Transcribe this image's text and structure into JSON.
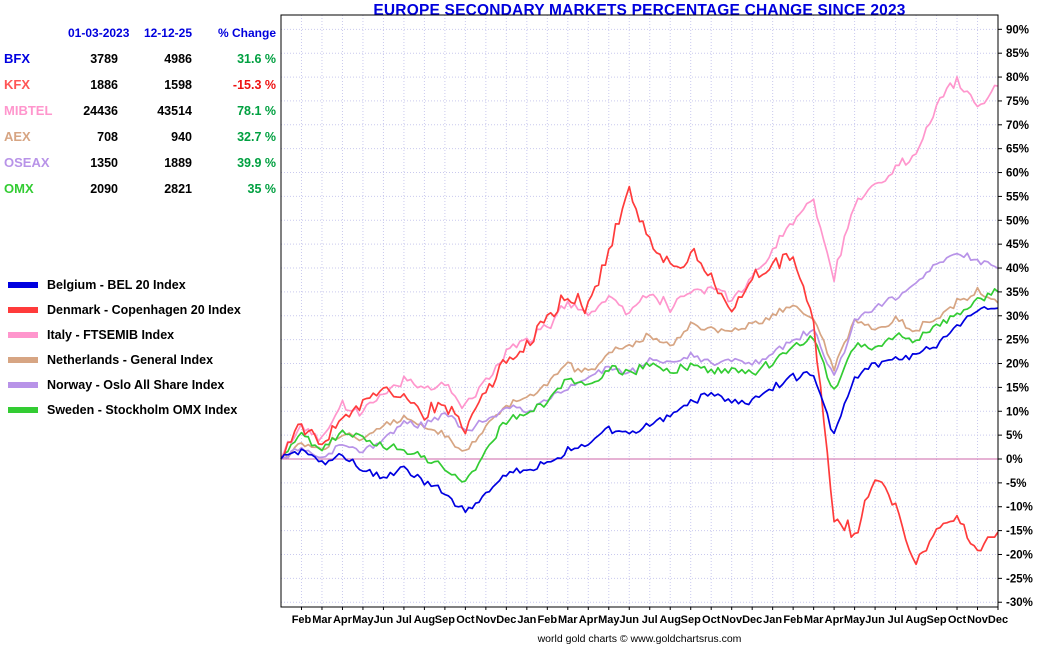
{
  "title": "EUROPE SECONDARY MARKETS PERCENTAGE CHANGE SINCE 2023",
  "footer": "world gold charts © www.goldchartsrus.com",
  "colors": {
    "title": "#0000dd",
    "table_header": "#0000dd",
    "positive_change": "#00a040",
    "negative_change": "#ee1111",
    "grid": "#c9c9ee",
    "zero_line": "#cc66aa",
    "plot_border": "#000000"
  },
  "stats_table": {
    "headers": [
      "01-03-2023",
      "12-12-25",
      "% Change"
    ],
    "rows": [
      {
        "label": "BFX",
        "color": "#0000e0",
        "start": "3789",
        "end": "4986",
        "change": "31.6 %",
        "change_color": "#00a040"
      },
      {
        "label": "KFX",
        "color": "#ff5555",
        "start": "1886",
        "end": "1598",
        "change": "-15.3 %",
        "change_color": "#ee1111"
      },
      {
        "label": "MIBTEL",
        "color": "#ff96cd",
        "start": "24436",
        "end": "43514",
        "change": "78.1 %",
        "change_color": "#00a040"
      },
      {
        "label": "AEX",
        "color": "#d7a583",
        "start": "708",
        "end": "940",
        "change": "32.7 %",
        "change_color": "#00a040"
      },
      {
        "label": "OSEAX",
        "color": "#b893e8",
        "start": "1350",
        "end": "1889",
        "change": "39.9 %",
        "change_color": "#00a040"
      },
      {
        "label": "OMX",
        "color": "#33cc33",
        "start": "2090",
        "end": "2821",
        "change": "35 %",
        "change_color": "#00a040"
      }
    ]
  },
  "legend": [
    {
      "label": "Belgium - BEL 20 Index",
      "color": "#0000e0"
    },
    {
      "label": "Denmark - Copenhagen 20 Index",
      "color": "#ff3b3b"
    },
    {
      "label": "Italy - FTSEMIB Index",
      "color": "#ff96cd"
    },
    {
      "label": "Netherlands - General Index",
      "color": "#d7a583"
    },
    {
      "label": "Norway -  Oslo All Share Index",
      "color": "#b893e8"
    },
    {
      "label": "Sweden -  Stockholm OMX Index",
      "color": "#33cc33"
    }
  ],
  "chart_data": {
    "type": "line",
    "title": "EUROPE SECONDARY MARKETS PERCENTAGE CHANGE SINCE 2023",
    "x_range": "Jan 2023 - Dec 2025",
    "x_tick_labels": [
      "Feb",
      "Mar",
      "Apr",
      "May",
      "Jun",
      "Jul",
      "Aug",
      "Sep",
      "Oct",
      "Nov",
      "Dec",
      "Jan",
      "Feb",
      "Mar",
      "Apr",
      "May",
      "Jun",
      "Jul",
      "Aug",
      "Sep",
      "Oct",
      "Nov",
      "Dec",
      "Jan",
      "Feb",
      "Mar",
      "Apr",
      "May",
      "Jun",
      "Jul",
      "Aug",
      "Sep",
      "Oct",
      "Nov",
      "Dec"
    ],
    "ylim": [
      -30,
      90
    ],
    "y_tick_step": 5,
    "y_unit": "%",
    "grid": true,
    "legend_position": "left",
    "series": [
      {
        "id": "belgium-bel20",
        "name": "Belgium - BEL 20 Index",
        "color": "#0000e0",
        "volatility": 1.0,
        "monthly_values": [
          0,
          2,
          -1,
          1,
          -2,
          -4,
          -2,
          -5,
          -7,
          -11,
          -7,
          -3,
          -2,
          -1,
          2,
          3,
          6,
          5,
          7,
          9,
          12,
          14,
          12,
          12,
          15,
          17,
          18,
          5,
          17,
          20,
          21,
          22,
          24,
          28,
          31,
          31.6
        ]
      },
      {
        "id": "denmark-copenhagen20",
        "name": "Denmark - Copenhagen 20 Index",
        "color": "#ff3b3b",
        "volatility": 2.0,
        "monthly_values": [
          0,
          7,
          3,
          9,
          11,
          14,
          13,
          9,
          12,
          7,
          14,
          20,
          24,
          30,
          34,
          32,
          44,
          56,
          46,
          40,
          43,
          38,
          32,
          38,
          41,
          43,
          28,
          -12,
          -16,
          -4,
          -9,
          -22,
          -14,
          -13,
          -19,
          -15.3
        ]
      },
      {
        "id": "italy-ftsemib",
        "name": "Italy - FTSEMIB Index",
        "color": "#ff96cd",
        "volatility": 1.5,
        "monthly_values": [
          0,
          7,
          4,
          11,
          10,
          14,
          17,
          14,
          16,
          11,
          17,
          22,
          25,
          28,
          33,
          30,
          34,
          31,
          35,
          32,
          35,
          36,
          33,
          38,
          43,
          50,
          54,
          38,
          54,
          57,
          61,
          64,
          74,
          80,
          74,
          78.1
        ]
      },
      {
        "id": "netherlands-general",
        "name": "Netherlands - General Index",
        "color": "#d7a583",
        "volatility": 1.1,
        "monthly_values": [
          0,
          3,
          2,
          5,
          4,
          7,
          9,
          7,
          5,
          1,
          7,
          11,
          13,
          16,
          20,
          18,
          22,
          24,
          26,
          24,
          28,
          27,
          27,
          28,
          30,
          32,
          29,
          19,
          29,
          27,
          29,
          27,
          30,
          33,
          35,
          32.7
        ]
      },
      {
        "id": "norway-oseax",
        "name": "Norway - Oslo All Share Index",
        "color": "#b893e8",
        "volatility": 1.0,
        "monthly_values": [
          0,
          2,
          0,
          3,
          2,
          4,
          8,
          7,
          10,
          6,
          8,
          11,
          10,
          12,
          15,
          17,
          19,
          18,
          21,
          20,
          22,
          20,
          21,
          20,
          22,
          25,
          27,
          17,
          29,
          32,
          34,
          37,
          41,
          43,
          42,
          39.9
        ]
      },
      {
        "id": "sweden-omx",
        "name": "Sweden - Stockholm OMX Index",
        "color": "#33cc33",
        "volatility": 1.1,
        "monthly_values": [
          0,
          5,
          2,
          6,
          4,
          3,
          2,
          0,
          -2,
          -5,
          2,
          8,
          10,
          12,
          17,
          15,
          19,
          18,
          20,
          18,
          20,
          18,
          19,
          18,
          20,
          24,
          25,
          14,
          24,
          23,
          26,
          25,
          28,
          30,
          33,
          35
        ]
      }
    ]
  }
}
